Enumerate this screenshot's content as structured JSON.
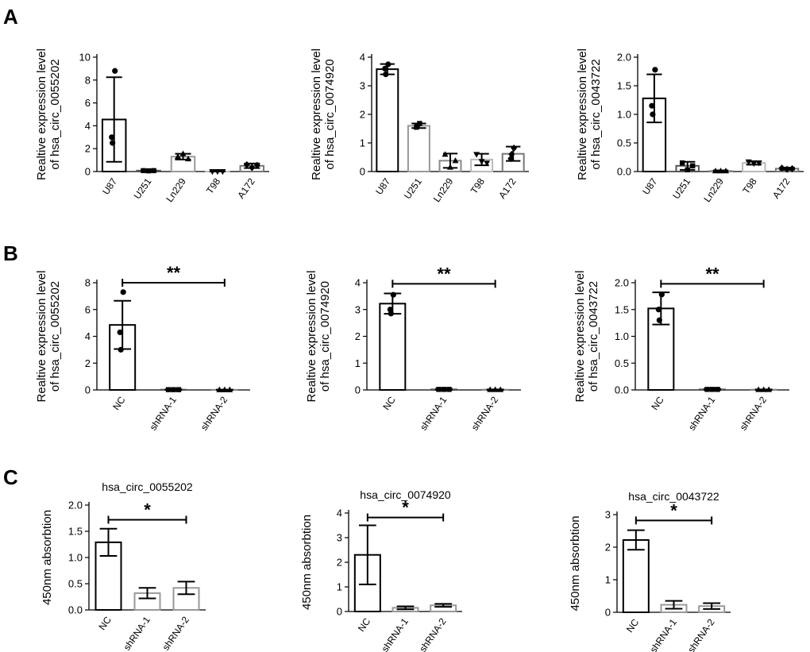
{
  "panels": [
    "A",
    "B",
    "C"
  ],
  "chart_data": [
    {
      "id": "A1",
      "panel": "A",
      "type": "bar",
      "title": "",
      "ylabel": [
        "Realtive expression level",
        "of hsa_circ_0055202"
      ],
      "categories": [
        "U87",
        "U251",
        "Ln229",
        "T98",
        "A172"
      ],
      "values": [
        4.55,
        0.08,
        1.3,
        0.0,
        0.5
      ],
      "errors": [
        3.7,
        0.04,
        0.25,
        0.02,
        0.2
      ],
      "points": [
        [
          8.8,
          3.0,
          2.5
        ],
        [
          0.08,
          0.06,
          0.08
        ],
        [
          1.3,
          1.55,
          1.1
        ],
        [
          0.0,
          0.0,
          0.0
        ],
        [
          0.6,
          0.35,
          0.55
        ]
      ],
      "markers": [
        "circle",
        "square",
        "triangle",
        "inv-triangle",
        "diamond"
      ],
      "bar_colors": [
        "#000000",
        "#555555",
        "#999999",
        "#bbbbbb",
        "#777777"
      ],
      "ylim": [
        0,
        10
      ],
      "yticks": [
        0,
        2,
        4,
        6,
        8,
        10
      ],
      "tick_labels": [
        "0",
        "2",
        "4",
        "6",
        "8",
        "10"
      ],
      "rotate_x": true,
      "significance": null
    },
    {
      "id": "A2",
      "panel": "A",
      "type": "bar",
      "title": "",
      "ylabel": [
        "Realtive expression level",
        "of hsa_circ_0074920"
      ],
      "categories": [
        "U87",
        "U251",
        "Ln229",
        "T98",
        "A172"
      ],
      "values": [
        3.58,
        1.6,
        0.38,
        0.42,
        0.62
      ],
      "errors": [
        0.18,
        0.08,
        0.25,
        0.2,
        0.25
      ],
      "points": [
        [
          3.75,
          3.6,
          3.4
        ],
        [
          1.68,
          1.55,
          1.6
        ],
        [
          0.6,
          0.15,
          0.38
        ],
        [
          0.6,
          0.35,
          0.3
        ],
        [
          0.82,
          0.45,
          0.6
        ]
      ],
      "markers": [
        "circle",
        "square",
        "triangle",
        "inv-triangle",
        "diamond"
      ],
      "bar_colors": [
        "#000000",
        "#999999",
        "#888888",
        "#bbbbbb",
        "#777777"
      ],
      "ylim": [
        0,
        4
      ],
      "yticks": [
        0,
        1,
        2,
        3,
        4
      ],
      "tick_labels": [
        "0",
        "1",
        "2",
        "3",
        "4"
      ],
      "rotate_x": true,
      "significance": null
    },
    {
      "id": "A3",
      "panel": "A",
      "type": "bar",
      "title": "",
      "ylabel": [
        "Realtive expression level",
        "of hsa_circ_0043722"
      ],
      "categories": [
        "U87",
        "U251",
        "Ln229",
        "T98",
        "A172"
      ],
      "values": [
        1.28,
        0.1,
        0.01,
        0.15,
        0.05
      ],
      "errors": [
        0.42,
        0.07,
        0.01,
        0.03,
        0.02
      ],
      "points": [
        [
          1.78,
          1.15,
          1.0
        ],
        [
          0.15,
          0.03,
          0.1
        ],
        [
          0.01,
          0.01,
          0.01
        ],
        [
          0.17,
          0.14,
          0.15
        ],
        [
          0.06,
          0.04,
          0.05
        ]
      ],
      "markers": [
        "circle",
        "square",
        "triangle",
        "inv-triangle",
        "diamond"
      ],
      "bar_colors": [
        "#000000",
        "#555555",
        "#888888",
        "#bbbbbb",
        "#777777"
      ],
      "ylim": [
        0,
        2
      ],
      "yticks": [
        0,
        0.5,
        1,
        1.5,
        2
      ],
      "tick_labels": [
        "0.0",
        "0.5",
        "1.0",
        "1.5",
        "2.0"
      ],
      "rotate_x": true,
      "significance": null
    },
    {
      "id": "B1",
      "panel": "B",
      "type": "bar",
      "title": "",
      "ylabel": [
        "Realtive expression level",
        "of hsa_circ_0055202"
      ],
      "categories": [
        "NC",
        "shRNA-1",
        "shRNA-2"
      ],
      "values": [
        4.85,
        0.02,
        0.01
      ],
      "errors": [
        1.8,
        0.02,
        0.01
      ],
      "points": [
        [
          7.3,
          4.3,
          3.0
        ],
        [
          0.02,
          0.02,
          0.02
        ],
        [
          0.01,
          0.01,
          0.01
        ]
      ],
      "markers": [
        "circle",
        "square",
        "triangle"
      ],
      "bar_colors": [
        "#000000",
        "#555555",
        "#888888"
      ],
      "ylim": [
        0,
        8
      ],
      "yticks": [
        0,
        2,
        4,
        6,
        8
      ],
      "tick_labels": [
        "0",
        "2",
        "4",
        "6",
        "8"
      ],
      "rotate_x": true,
      "significance": {
        "from": 0,
        "to": 2,
        "y": 8,
        "text": "**"
      }
    },
    {
      "id": "B2",
      "panel": "B",
      "type": "bar",
      "title": "",
      "ylabel": [
        "Realtive expression level",
        "of hsa_circ_0074920"
      ],
      "categories": [
        "NC",
        "shRNA-1",
        "shRNA-2"
      ],
      "values": [
        3.22,
        0.02,
        0.01
      ],
      "errors": [
        0.38,
        0.02,
        0.01
      ],
      "points": [
        [
          3.55,
          3.0,
          2.85
        ],
        [
          0.02,
          0.02,
          0.02
        ],
        [
          0.01,
          0.01,
          0.01
        ]
      ],
      "markers": [
        "circle",
        "square",
        "triangle"
      ],
      "bar_colors": [
        "#000000",
        "#555555",
        "#888888"
      ],
      "ylim": [
        0,
        4
      ],
      "yticks": [
        0,
        1,
        2,
        3,
        4
      ],
      "tick_labels": [
        "0",
        "1",
        "2",
        "3",
        "4"
      ],
      "rotate_x": true,
      "significance": {
        "from": 0,
        "to": 2,
        "y": 3.96,
        "text": "**"
      }
    },
    {
      "id": "B3",
      "panel": "B",
      "type": "bar",
      "title": "",
      "ylabel": [
        "Realtive expression level",
        "of hsa_circ_0043722"
      ],
      "categories": [
        "NC",
        "shRNA-1",
        "shRNA-2"
      ],
      "values": [
        1.52,
        0.01,
        0.005
      ],
      "errors": [
        0.3,
        0.01,
        0.005
      ],
      "points": [
        [
          1.78,
          1.5,
          1.3
        ],
        [
          0.01,
          0.01,
          0.01
        ],
        [
          0.005,
          0.005,
          0.005
        ]
      ],
      "markers": [
        "circle",
        "square",
        "triangle"
      ],
      "bar_colors": [
        "#000000",
        "#555555",
        "#888888"
      ],
      "ylim": [
        0,
        2
      ],
      "yticks": [
        0,
        0.5,
        1,
        1.5,
        2
      ],
      "tick_labels": [
        "0.0",
        "0.5",
        "1.0",
        "1.5",
        "2.0"
      ],
      "rotate_x": true,
      "significance": {
        "from": 0,
        "to": 2,
        "y": 1.98,
        "text": "**"
      }
    },
    {
      "id": "C1",
      "panel": "C",
      "type": "bar",
      "title": "hsa_circ_0055202",
      "ylabel": [
        "450nm absorbtion"
      ],
      "categories": [
        "NC",
        "shRNA-1",
        "shRNA-2"
      ],
      "values": [
        1.29,
        0.32,
        0.42
      ],
      "errors": [
        0.26,
        0.1,
        0.12
      ],
      "points": null,
      "markers": null,
      "bar_colors": [
        "#000000",
        "#999999",
        "#999999"
      ],
      "ylim": [
        0,
        2
      ],
      "yticks": [
        0,
        0.5,
        1,
        1.5,
        2
      ],
      "tick_labels": [
        "0.0",
        "0.5",
        "1.0",
        "1.5",
        "2.0"
      ],
      "rotate_x": true,
      "significance": {
        "from": 0,
        "to": 2,
        "y": 1.72,
        "text": "*"
      }
    },
    {
      "id": "C2",
      "panel": "C",
      "type": "bar",
      "title": "hsa_circ_0074920",
      "ylabel": [
        "450nm absorbtion"
      ],
      "categories": [
        "NC",
        "shRNA-1",
        "shRNA-2"
      ],
      "values": [
        2.3,
        0.15,
        0.25
      ],
      "errors": [
        1.2,
        0.06,
        0.06
      ],
      "points": null,
      "markers": null,
      "bar_colors": [
        "#000000",
        "#999999",
        "#999999"
      ],
      "ylim": [
        0,
        4
      ],
      "yticks": [
        0,
        1,
        2,
        3,
        4
      ],
      "tick_labels": [
        "0",
        "1",
        "2",
        "3",
        "4"
      ],
      "rotate_x": true,
      "significance": {
        "from": 0,
        "to": 2,
        "y": 3.82,
        "text": "*"
      }
    },
    {
      "id": "C3",
      "panel": "C",
      "type": "bar",
      "title": "hsa_circ_0043722",
      "ylabel": [
        "450nm absorbtion"
      ],
      "categories": [
        "NC",
        "shRNA-1",
        "shRNA-2"
      ],
      "values": [
        2.22,
        0.23,
        0.19
      ],
      "errors": [
        0.3,
        0.12,
        0.09
      ],
      "points": null,
      "markers": null,
      "bar_colors": [
        "#000000",
        "#999999",
        "#999999"
      ],
      "ylim": [
        0,
        3
      ],
      "yticks": [
        0,
        1,
        2,
        3
      ],
      "tick_labels": [
        "0",
        "1",
        "2",
        "3"
      ],
      "rotate_x": true,
      "significance": {
        "from": 0,
        "to": 2,
        "y": 2.82,
        "text": "*"
      }
    }
  ]
}
